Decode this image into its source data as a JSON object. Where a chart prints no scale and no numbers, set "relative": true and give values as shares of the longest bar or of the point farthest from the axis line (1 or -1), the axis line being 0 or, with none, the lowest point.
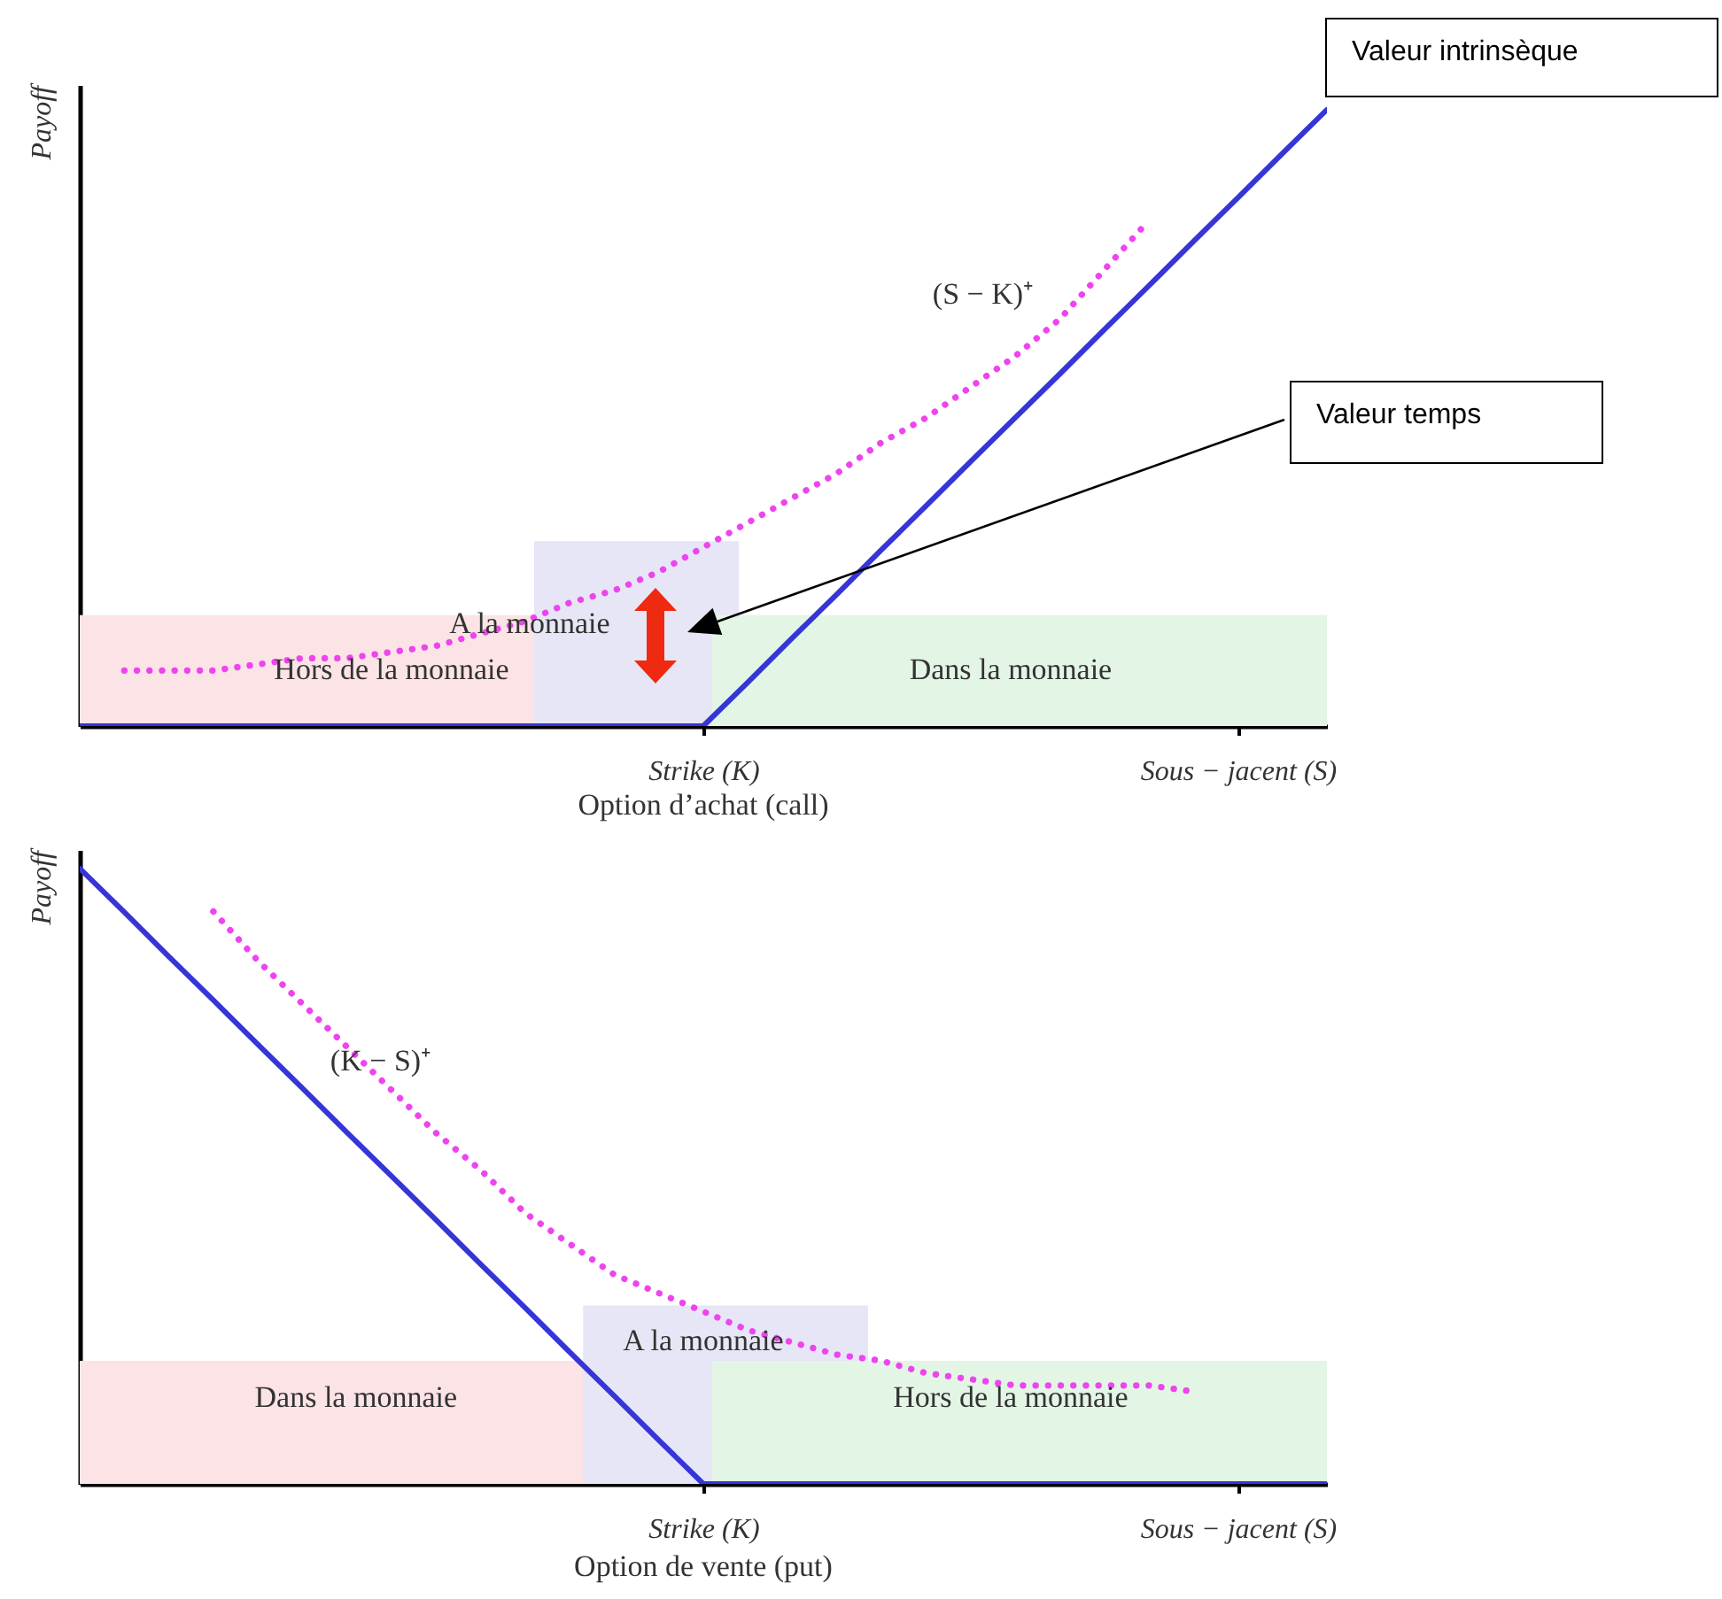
{
  "chart_data": [
    {
      "type": "line",
      "title": "Option d’achat (call)",
      "ylabel": "Payoff",
      "relative": true,
      "grid": false,
      "marker": "none",
      "categories": [
        null,
        null,
        null,
        null,
        null,
        null,
        null,
        null,
        null,
        null,
        null,
        null,
        null,
        null,
        "Strike (K)",
        null,
        null,
        null,
        null,
        null,
        null,
        null,
        null,
        null,
        null,
        null,
        "Sous − jacent (S)",
        null,
        null
      ],
      "series": [
        {
          "color": "#3535d8",
          "line_style": "solid",
          "values": [
            0,
            0,
            0,
            0,
            0,
            0,
            0,
            0,
            0,
            0,
            0,
            0,
            0,
            0,
            0,
            0.071,
            0.143,
            0.214,
            0.286,
            0.357,
            0.429,
            0.5,
            0.571,
            0.643,
            0.714,
            0.786,
            0.857,
            0.929,
            1.0
          ]
        },
        {
          "color": "#ee44ee",
          "line_style": "dotted",
          "values": [
            null,
            0.09,
            0.09,
            0.09,
            0.1,
            0.11,
            0.11,
            0.12,
            0.13,
            0.15,
            0.17,
            0.2,
            0.22,
            0.25,
            0.29,
            0.33,
            0.37,
            0.41,
            0.46,
            0.5,
            0.55,
            0.6,
            0.66,
            0.74,
            0.82,
            null,
            null,
            null,
            null
          ]
        }
      ],
      "bands": [
        {
          "axis": "y",
          "from": 0,
          "to": 0.18,
          "label": "Hors de la monnaie",
          "color": "#fbe3e6"
        },
        {
          "axis": "y",
          "from": 0,
          "to": 0.3,
          "label": "A la monnaie",
          "color": "#e6e6f6"
        },
        {
          "axis": "y",
          "from": 0,
          "to": 0.18,
          "label": "Dans la monnaie",
          "color": "#e3f5e5"
        }
      ],
      "annotations": [
        "Valeur intrinsèque",
        "Valeur temps",
        "(S − K)⁺"
      ]
    },
    {
      "type": "line",
      "title": "Option de vente (put)",
      "ylabel": "Payoff",
      "relative": true,
      "grid": false,
      "marker": "none",
      "categories": [
        null,
        null,
        null,
        null,
        null,
        null,
        null,
        null,
        null,
        null,
        null,
        null,
        null,
        null,
        "Strike (K)",
        null,
        null,
        null,
        null,
        null,
        null,
        null,
        null,
        null,
        null,
        null,
        "Sous − jacent (S)",
        null,
        null
      ],
      "series": [
        {
          "color": "#3535d8",
          "line_style": "solid",
          "values": [
            1.0,
            0.929,
            0.857,
            0.786,
            0.714,
            0.643,
            0.571,
            0.5,
            0.429,
            0.357,
            0.286,
            0.214,
            0.143,
            0.071,
            0,
            0,
            0,
            0,
            0,
            0,
            0,
            0,
            0,
            0,
            0,
            0,
            0,
            0,
            0
          ]
        },
        {
          "color": "#ee44ee",
          "line_style": "dotted",
          "values": [
            null,
            null,
            null,
            0.93,
            0.85,
            0.78,
            0.71,
            0.64,
            0.57,
            0.51,
            0.44,
            0.39,
            0.34,
            0.31,
            0.28,
            0.25,
            0.23,
            0.21,
            0.2,
            0.18,
            0.17,
            0.16,
            0.16,
            0.16,
            0.16,
            0.15,
            null,
            null,
            null
          ]
        }
      ],
      "bands": [
        {
          "axis": "y",
          "from": 0,
          "to": 0.2,
          "label": "Dans la monnaie",
          "color": "#fbe3e6"
        },
        {
          "axis": "y",
          "from": 0,
          "to": 0.29,
          "label": "A la monnaie",
          "color": "#e6e6f6"
        },
        {
          "axis": "y",
          "from": 0,
          "to": 0.2,
          "label": "Hors de la monnaie",
          "color": "#e3f5e5"
        }
      ],
      "annotations": [
        "(K − S)⁺"
      ]
    }
  ]
}
